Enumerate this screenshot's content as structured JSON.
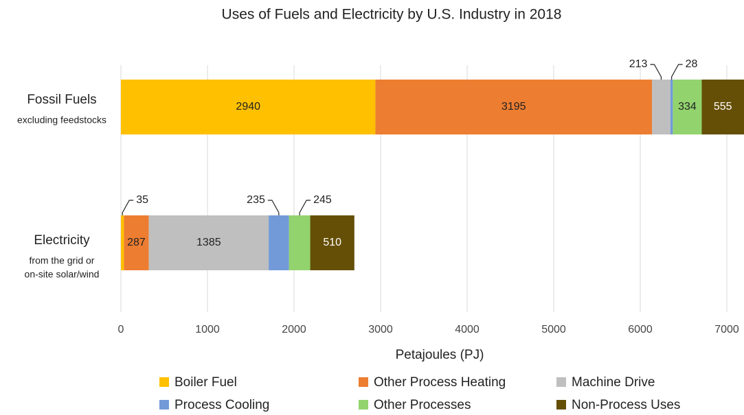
{
  "chart_data": {
    "type": "stacked-barh",
    "title": "Uses of Fuels and Electricity by U.S. Industry in 2018",
    "xlabel": "Petajoules (PJ)",
    "categories": [
      "Fossil Fuels",
      "Electricity"
    ],
    "category_subtitles": [
      [
        "excluding feedstocks"
      ],
      [
        "from the grid or",
        "on-site solar/wind"
      ]
    ],
    "series": [
      {
        "name": "Boiler Fuel",
        "color": "#ffc000",
        "values": [
          2940,
          35
        ]
      },
      {
        "name": "Other Process Heating",
        "color": "#ed7d31",
        "values": [
          3195,
          287
        ]
      },
      {
        "name": "Machine Drive",
        "color": "#bfbfbf",
        "values": [
          213,
          1385
        ]
      },
      {
        "name": "Process Cooling",
        "color": "#729ad8",
        "values": [
          28,
          235
        ]
      },
      {
        "name": "Other Processes",
        "color": "#92d36e",
        "values": [
          334,
          245
        ]
      },
      {
        "name": "Non-Process Uses",
        "color": "#654f06",
        "values": [
          555,
          510
        ]
      }
    ],
    "xlim": [
      0,
      7200
    ],
    "xticks": [
      0,
      1000,
      2000,
      3000,
      4000,
      5000,
      6000,
      7000
    ],
    "grid": true,
    "legend": "bottom"
  }
}
